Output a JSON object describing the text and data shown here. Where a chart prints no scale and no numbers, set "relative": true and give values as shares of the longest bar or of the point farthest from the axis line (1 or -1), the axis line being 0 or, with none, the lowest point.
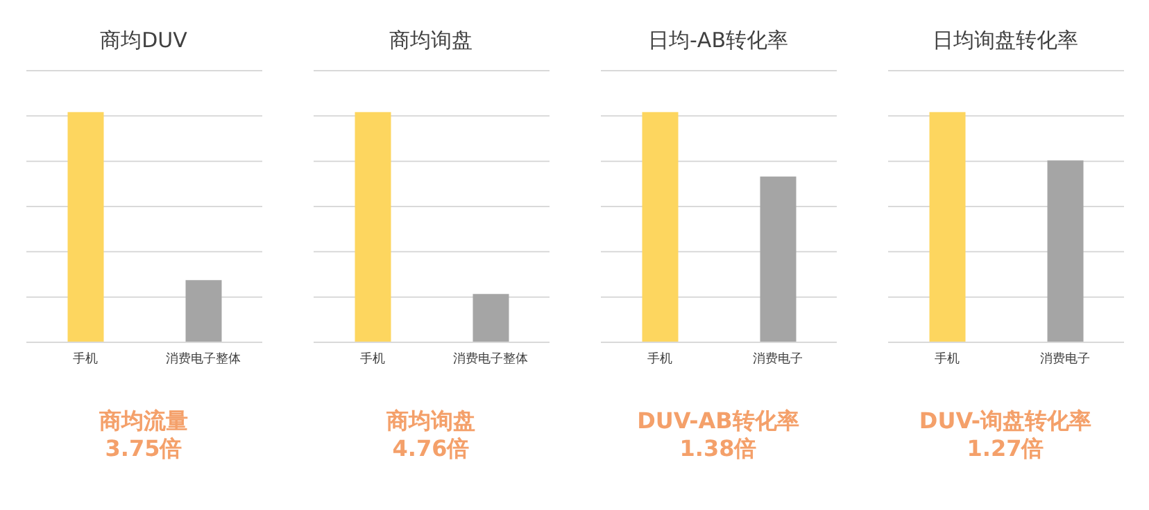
{
  "chart_data": [
    {
      "type": "bar",
      "title": "商均DUV",
      "categories": [
        "手机",
        "消费电子整体"
      ],
      "values": [
        1,
        0.27
      ],
      "colors": [
        "#fdd65f",
        "#a5a5a5"
      ],
      "relative": true,
      "grid": "y",
      "annotations": [
        "商均流量",
        "3.75倍"
      ]
    },
    {
      "type": "bar",
      "title": "商均询盘",
      "categories": [
        "手机",
        "消费电子整体"
      ],
      "values": [
        1,
        0.21
      ],
      "colors": [
        "#fdd65f",
        "#a5a5a5"
      ],
      "relative": true,
      "grid": "y",
      "annotations": [
        "商均询盘",
        "4.76倍"
      ]
    },
    {
      "type": "bar",
      "title": "日均-AB转化率",
      "categories": [
        "手机",
        "消费电子"
      ],
      "values": [
        1,
        0.72
      ],
      "colors": [
        "#fdd65f",
        "#a5a5a5"
      ],
      "relative": true,
      "grid": "y",
      "annotations": [
        "DUV-AB转化率",
        "1.38倍"
      ]
    },
    {
      "type": "bar",
      "title": "日均询盘转化率",
      "categories": [
        "手机",
        "消费电子"
      ],
      "values": [
        1,
        0.79
      ],
      "colors": [
        "#fdd65f",
        "#a5a5a5"
      ],
      "relative": true,
      "grid": "y",
      "annotations": [
        "DUV-询盘转化率",
        "1.27倍"
      ]
    }
  ]
}
